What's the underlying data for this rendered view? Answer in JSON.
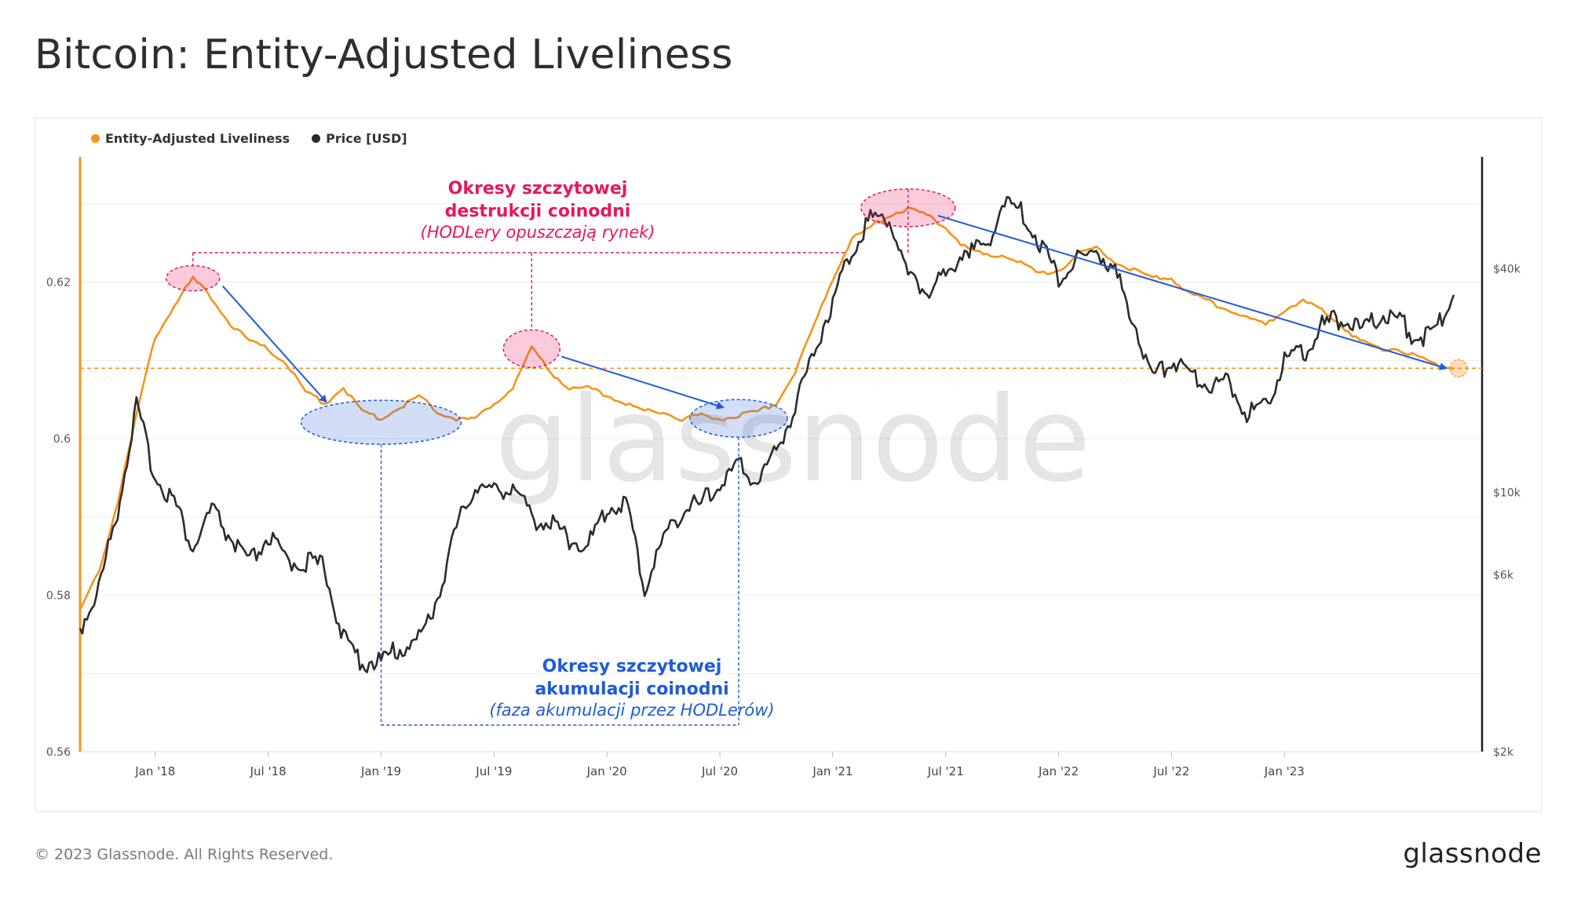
{
  "page": {
    "title": "Bitcoin: Entity-Adjusted Liveliness",
    "copyright": "© 2023 Glassnode. All Rights Reserved.",
    "brand": "glassnode",
    "watermark": "glassnode"
  },
  "colors": {
    "liveliness": "#f7931a",
    "price": "#2b2b2b",
    "destruction": "#e8175d",
    "accumulation": "#1f5bd8",
    "trend_arrow": "#1f5bd8",
    "grid": "#ececec"
  },
  "legend": [
    {
      "name": "Entity-Adjusted Liveliness",
      "color": "#f7931a"
    },
    {
      "name": "Price [USD]",
      "color": "#2b2b2b"
    }
  ],
  "chart_data": {
    "type": "line",
    "title": "Bitcoin: Entity-Adjusted Liveliness",
    "x_ticks": [
      "Jan '18",
      "Jul '18",
      "Jan '19",
      "Jul '19",
      "Jan '20",
      "Jul '20",
      "Jan '21",
      "Jul '21",
      "Jan '22",
      "Jul '22",
      "Jan '23"
    ],
    "left_axis": {
      "ticks": [
        "0.56",
        "0.58",
        "0.6",
        "0.62"
      ],
      "ylim": [
        0.56,
        0.636
      ]
    },
    "right_axis": {
      "scale": "log",
      "ticks": [
        "$2k",
        "$6k",
        "$10k",
        "$40k"
      ],
      "ylim": [
        2000,
        80000
      ]
    },
    "reference_line": {
      "axis": "left",
      "value": 0.609,
      "style": "dashed",
      "color": "#f7931a"
    },
    "series": [
      {
        "name": "Entity-Adjusted Liveliness",
        "axis": "left",
        "x": [
          "2017-09",
          "2017-10",
          "2017-11",
          "2017-12",
          "2018-01",
          "2018-02",
          "2018-03",
          "2018-04",
          "2018-05",
          "2018-06",
          "2018-07",
          "2018-08",
          "2018-09",
          "2018-10",
          "2018-11",
          "2018-12",
          "2019-01",
          "2019-02",
          "2019-03",
          "2019-04",
          "2019-05",
          "2019-06",
          "2019-07",
          "2019-08",
          "2019-09",
          "2019-10",
          "2019-11",
          "2019-12",
          "2020-01",
          "2020-02",
          "2020-03",
          "2020-04",
          "2020-05",
          "2020-06",
          "2020-07",
          "2020-08",
          "2020-09",
          "2020-10",
          "2020-11",
          "2020-12",
          "2021-01",
          "2021-02",
          "2021-03",
          "2021-04",
          "2021-05",
          "2021-06",
          "2021-07",
          "2021-08",
          "2021-09",
          "2021-10",
          "2021-11",
          "2021-12",
          "2022-01",
          "2022-02",
          "2022-03",
          "2022-04",
          "2022-05",
          "2022-06",
          "2022-07",
          "2022-08",
          "2022-09",
          "2022-10",
          "2022-11",
          "2022-12",
          "2023-01",
          "2023-02",
          "2023-03",
          "2023-04",
          "2023-05",
          "2023-06",
          "2023-07",
          "2023-08",
          "2023-09",
          "2023-10"
        ],
        "values": [
          0.578,
          0.583,
          0.592,
          0.603,
          0.613,
          0.617,
          0.6205,
          0.618,
          0.6145,
          0.6125,
          0.6115,
          0.6095,
          0.606,
          0.6045,
          0.6065,
          0.6035,
          0.6025,
          0.604,
          0.6055,
          0.6035,
          0.6025,
          0.6025,
          0.6045,
          0.6065,
          0.6115,
          0.6085,
          0.6065,
          0.6065,
          0.6055,
          0.6045,
          0.6035,
          0.6035,
          0.6025,
          0.603,
          0.6025,
          0.603,
          0.6035,
          0.6045,
          0.6085,
          0.6145,
          0.6205,
          0.6255,
          0.627,
          0.6285,
          0.6295,
          0.6285,
          0.627,
          0.6245,
          0.6235,
          0.6235,
          0.6225,
          0.621,
          0.6215,
          0.6235,
          0.6245,
          0.6225,
          0.6215,
          0.6205,
          0.6205,
          0.6185,
          0.6175,
          0.6165,
          0.6155,
          0.6145,
          0.6165,
          0.6175,
          0.6165,
          0.6145,
          0.6125,
          0.6115,
          0.6115,
          0.6105,
          0.6095,
          0.609
        ]
      },
      {
        "name": "Price [USD]",
        "axis": "right",
        "x": [
          "2017-09",
          "2017-10",
          "2017-11",
          "2017-12",
          "2018-01",
          "2018-02",
          "2018-03",
          "2018-04",
          "2018-05",
          "2018-06",
          "2018-07",
          "2018-08",
          "2018-09",
          "2018-10",
          "2018-11",
          "2018-12",
          "2019-01",
          "2019-02",
          "2019-03",
          "2019-04",
          "2019-05",
          "2019-06",
          "2019-07",
          "2019-08",
          "2019-09",
          "2019-10",
          "2019-11",
          "2019-12",
          "2020-01",
          "2020-02",
          "2020-03",
          "2020-04",
          "2020-05",
          "2020-06",
          "2020-07",
          "2020-08",
          "2020-09",
          "2020-10",
          "2020-11",
          "2020-12",
          "2021-01",
          "2021-02",
          "2021-03",
          "2021-04",
          "2021-05",
          "2021-06",
          "2021-07",
          "2021-08",
          "2021-09",
          "2021-10",
          "2021-11",
          "2021-12",
          "2022-01",
          "2022-02",
          "2022-03",
          "2022-04",
          "2022-05",
          "2022-06",
          "2022-07",
          "2022-08",
          "2022-09",
          "2022-10",
          "2022-11",
          "2022-12",
          "2023-01",
          "2023-02",
          "2023-03",
          "2023-04",
          "2023-05",
          "2023-06",
          "2023-07",
          "2023-08",
          "2023-09",
          "2023-10"
        ],
        "values": [
          4300,
          5500,
          9000,
          17000,
          11000,
          9500,
          7000,
          9000,
          7500,
          6400,
          7600,
          6500,
          6500,
          6300,
          4000,
          3500,
          3500,
          3800,
          4000,
          5200,
          8000,
          10500,
          10000,
          10500,
          8500,
          8300,
          7500,
          7200,
          9000,
          9500,
          5500,
          7500,
          9000,
          9300,
          10500,
          11800,
          10700,
          13000,
          17000,
          24000,
          33000,
          45000,
          55000,
          55000,
          38000,
          35000,
          38000,
          46000,
          44000,
          60000,
          57000,
          47000,
          38000,
          42000,
          45000,
          39000,
          29000,
          20000,
          23000,
          21000,
          19500,
          20000,
          16500,
          17000,
          23000,
          23500,
          28000,
          29500,
          27000,
          30000,
          29500,
          26000,
          27000,
          34000
        ]
      }
    ],
    "annotations": [
      {
        "type": "destruction",
        "label_title": "Okresy szczytowej\ndestrukcji coinodni",
        "label_sub": "(HODLery opuszczają rynek)",
        "color": "#e8175d",
        "regions": [
          "2018-03",
          "2019-09",
          "2021-05"
        ]
      },
      {
        "type": "accumulation",
        "label_title": "Okresy szczytowej\nakumulacji coinodni",
        "label_sub": "(faza akumulacji przez HODLerów)",
        "color": "#1f5bd8",
        "regions": [
          "2019-01",
          "2020-08"
        ]
      }
    ]
  }
}
